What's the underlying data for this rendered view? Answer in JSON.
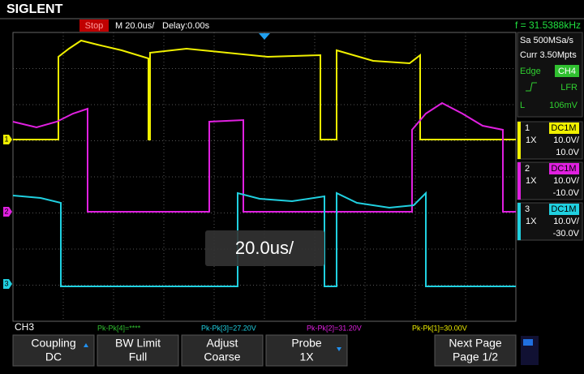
{
  "header": {
    "brand": "SIGLENT",
    "status": "Stop",
    "timebase": "M 20.0us/",
    "delay": "Delay:0.00s",
    "frequency": "f = 31.5388kHz"
  },
  "acquisition": {
    "sample_rate": "Sa 500MSa/s",
    "memory": "Curr 3.50Mpts"
  },
  "trigger": {
    "type": "Edge",
    "source": "CH4",
    "coupling": "LFR",
    "level_label": "L",
    "level": "106mV"
  },
  "channels": [
    {
      "number": "1",
      "coupling": "DC1M",
      "probe": "1X",
      "scale": "10.0V/",
      "offset": "10.0V",
      "color": "#f0f000"
    },
    {
      "number": "2",
      "coupling": "DC1M",
      "probe": "1X",
      "scale": "10.0V/",
      "offset": "-10.0V",
      "color": "#e020e0"
    },
    {
      "number": "3",
      "coupling": "DC1M",
      "probe": "1X",
      "scale": "10.0V/",
      "offset": "-30.0V",
      "color": "#20d0e0"
    }
  ],
  "overlay": "20.0us/",
  "selected_channel": "CH3",
  "measurements": [
    {
      "text": "Pk-Pk[4]=****",
      "color": "#30c030"
    },
    {
      "text": "Pk-Pk[3]=27.20V",
      "color": "#20d0e0"
    },
    {
      "text": "Pk-Pk[2]=31.20V",
      "color": "#e020e0"
    },
    {
      "text": "Pk-Pk[1]=30.00V",
      "color": "#f0f000"
    }
  ],
  "menu": [
    {
      "title": "Coupling",
      "value": "DC"
    },
    {
      "title": "BW Limit",
      "value": "Full"
    },
    {
      "title": "Adjust",
      "value": "Coarse"
    },
    {
      "title": "Probe",
      "value": "1X"
    },
    {
      "title": "Next Page",
      "value": "Page 1/2"
    }
  ]
}
